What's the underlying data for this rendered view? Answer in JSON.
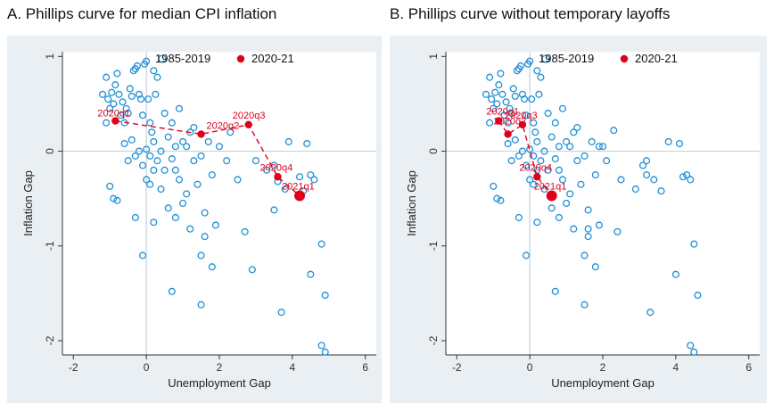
{
  "chart_data": [
    {
      "type": "scatter",
      "title": "A. Phillips curve for median CPI inflation",
      "xlabel": "Unemployment Gap",
      "ylabel": "Inflation Gap",
      "xlim": [
        -2.3,
        6.3
      ],
      "ylim": [
        -2.15,
        1.05
      ],
      "xticks": [
        -2,
        0,
        2,
        4,
        6
      ],
      "yticks": [
        1,
        0,
        -1,
        -2
      ],
      "reference_lines": {
        "x": 0,
        "y": 0
      },
      "legend": {
        "position": "top",
        "entries": [
          "1985-2019",
          "2020-21"
        ]
      },
      "series": [
        {
          "name": "1985-2019",
          "marker": "hollow-circle",
          "color": "#1f8fd6",
          "points": [
            [
              -1.2,
              0.6
            ],
            [
              -1.1,
              0.78
            ],
            [
              -1.05,
              0.55
            ],
            [
              -1.0,
              0.45
            ],
            [
              -0.95,
              0.62
            ],
            [
              -0.9,
              0.5
            ],
            [
              -0.85,
              0.7
            ],
            [
              -0.8,
              0.82
            ],
            [
              -0.75,
              0.6
            ],
            [
              -0.7,
              0.38
            ],
            [
              -0.65,
              0.52
            ],
            [
              -0.6,
              0.3
            ],
            [
              -0.55,
              0.45
            ],
            [
              -0.5,
              0.4
            ],
            [
              -0.45,
              0.66
            ],
            [
              -0.4,
              0.58
            ],
            [
              -0.35,
              0.85
            ],
            [
              -0.3,
              0.87
            ],
            [
              -0.25,
              0.9
            ],
            [
              -0.2,
              0.6
            ],
            [
              -0.15,
              0.55
            ],
            [
              -0.1,
              0.38
            ],
            [
              -0.05,
              0.92
            ],
            [
              0.0,
              0.95
            ],
            [
              0.05,
              0.55
            ],
            [
              0.1,
              0.3
            ],
            [
              0.15,
              0.2
            ],
            [
              0.2,
              0.85
            ],
            [
              0.25,
              0.6
            ],
            [
              0.3,
              0.78
            ],
            [
              -0.6,
              0.08
            ],
            [
              -0.5,
              -0.1
            ],
            [
              -0.4,
              0.12
            ],
            [
              -0.3,
              -0.05
            ],
            [
              -0.2,
              0.0
            ],
            [
              -0.1,
              -0.15
            ],
            [
              0.0,
              0.02
            ],
            [
              0.1,
              -0.05
            ],
            [
              0.2,
              0.1
            ],
            [
              0.3,
              -0.1
            ],
            [
              0.4,
              0.0
            ],
            [
              0.5,
              -0.2
            ],
            [
              0.6,
              0.15
            ],
            [
              0.7,
              -0.08
            ],
            [
              0.8,
              0.05
            ],
            [
              0.9,
              -0.3
            ],
            [
              1.0,
              0.1
            ],
            [
              1.1,
              -0.45
            ],
            [
              1.2,
              0.2
            ],
            [
              1.3,
              -0.1
            ],
            [
              0.0,
              -0.3
            ],
            [
              0.1,
              -0.35
            ],
            [
              0.2,
              -0.2
            ],
            [
              0.4,
              -0.4
            ],
            [
              0.6,
              -0.6
            ],
            [
              0.8,
              -0.7
            ],
            [
              1.0,
              -0.55
            ],
            [
              1.2,
              -0.82
            ],
            [
              1.4,
              -0.35
            ],
            [
              1.6,
              -0.9
            ],
            [
              1.8,
              -0.25
            ],
            [
              1.9,
              -0.78
            ],
            [
              0.5,
              0.4
            ],
            [
              0.7,
              0.3
            ],
            [
              0.9,
              0.45
            ],
            [
              1.1,
              0.05
            ],
            [
              1.3,
              0.25
            ],
            [
              1.5,
              -0.05
            ],
            [
              1.7,
              0.1
            ],
            [
              2.0,
              0.05
            ],
            [
              -1.1,
              0.3
            ],
            [
              -1.0,
              -0.37
            ],
            [
              -0.9,
              -0.5
            ],
            [
              -0.8,
              -0.52
            ],
            [
              -0.3,
              -0.7
            ],
            [
              0.2,
              -0.75
            ],
            [
              0.7,
              -1.48
            ],
            [
              1.5,
              -1.1
            ],
            [
              1.8,
              -1.22
            ],
            [
              1.5,
              -1.62
            ],
            [
              -0.1,
              -1.1
            ],
            [
              2.7,
              -0.85
            ],
            [
              2.9,
              -1.25
            ],
            [
              3.5,
              -0.15
            ],
            [
              3.6,
              -0.32
            ],
            [
              3.8,
              -0.4
            ],
            [
              3.9,
              0.1
            ],
            [
              4.2,
              -0.27
            ],
            [
              4.4,
              0.08
            ],
            [
              4.5,
              -0.25
            ],
            [
              4.6,
              -0.3
            ],
            [
              4.3,
              -0.42
            ],
            [
              3.3,
              -0.2
            ],
            [
              3.0,
              -0.1
            ],
            [
              4.5,
              -1.3
            ],
            [
              4.8,
              -0.98
            ],
            [
              4.9,
              -1.52
            ],
            [
              3.7,
              -1.7
            ],
            [
              4.8,
              -2.05
            ],
            [
              4.9,
              -2.12
            ],
            [
              2.5,
              -0.3
            ],
            [
              2.3,
              0.2
            ],
            [
              3.5,
              -0.62
            ],
            [
              0.8,
              -0.2
            ],
            [
              1.6,
              -0.65
            ],
            [
              2.2,
              -0.1
            ]
          ]
        },
        {
          "name": "2020-21",
          "marker": "filled-circle",
          "color": "#e0001b",
          "points": [
            {
              "label": "2020q1",
              "x": -0.85,
              "y": 0.32
            },
            {
              "label": "2020q2",
              "x": 1.5,
              "y": 0.18
            },
            {
              "label": "2020q3",
              "x": 2.8,
              "y": 0.28
            },
            {
              "label": "2020q4",
              "x": 3.6,
              "y": -0.27
            },
            {
              "label": "2021q1",
              "x": 4.2,
              "y": -0.47
            }
          ]
        }
      ]
    },
    {
      "type": "scatter",
      "title": "B. Phillips curve without temporary layoffs",
      "xlabel": "Unemployment Gap",
      "ylabel": "Inflation Gap",
      "xlim": [
        -2.3,
        6.3
      ],
      "ylim": [
        -2.15,
        1.05
      ],
      "xticks": [
        -2,
        0,
        2,
        4,
        6
      ],
      "yticks": [
        1,
        0,
        -1,
        -2
      ],
      "reference_lines": {
        "x": 0,
        "y": 0
      },
      "legend": {
        "position": "top",
        "entries": [
          "1985-2019",
          "2020-21"
        ]
      },
      "series": [
        {
          "name": "1985-2019",
          "marker": "hollow-circle",
          "color": "#1f8fd6",
          "points": [
            [
              -1.2,
              0.6
            ],
            [
              -1.1,
              0.78
            ],
            [
              -1.05,
              0.55
            ],
            [
              -1.0,
              0.45
            ],
            [
              -0.95,
              0.62
            ],
            [
              -0.9,
              0.5
            ],
            [
              -0.85,
              0.7
            ],
            [
              -0.8,
              0.82
            ],
            [
              -0.75,
              0.6
            ],
            [
              -0.7,
              0.38
            ],
            [
              -0.65,
              0.52
            ],
            [
              -0.6,
              0.3
            ],
            [
              -0.55,
              0.45
            ],
            [
              -0.5,
              0.4
            ],
            [
              -0.45,
              0.66
            ],
            [
              -0.4,
              0.58
            ],
            [
              -0.35,
              0.85
            ],
            [
              -0.3,
              0.87
            ],
            [
              -0.25,
              0.9
            ],
            [
              -0.2,
              0.6
            ],
            [
              -0.15,
              0.55
            ],
            [
              -0.1,
              0.38
            ],
            [
              -0.05,
              0.92
            ],
            [
              0.0,
              0.95
            ],
            [
              0.05,
              0.55
            ],
            [
              0.1,
              0.3
            ],
            [
              0.15,
              0.2
            ],
            [
              0.2,
              0.85
            ],
            [
              0.25,
              0.6
            ],
            [
              0.3,
              0.78
            ],
            [
              -0.6,
              0.08
            ],
            [
              -0.5,
              -0.1
            ],
            [
              -0.4,
              0.12
            ],
            [
              -0.3,
              -0.05
            ],
            [
              -0.2,
              0.0
            ],
            [
              -0.1,
              -0.15
            ],
            [
              0.0,
              0.02
            ],
            [
              0.1,
              -0.05
            ],
            [
              0.2,
              0.1
            ],
            [
              0.3,
              -0.1
            ],
            [
              0.4,
              0.0
            ],
            [
              0.5,
              -0.2
            ],
            [
              0.6,
              0.15
            ],
            [
              0.7,
              -0.08
            ],
            [
              0.8,
              0.05
            ],
            [
              0.9,
              -0.3
            ],
            [
              1.0,
              0.1
            ],
            [
              1.1,
              -0.45
            ],
            [
              1.2,
              0.2
            ],
            [
              1.3,
              -0.1
            ],
            [
              0.0,
              -0.3
            ],
            [
              0.1,
              -0.35
            ],
            [
              0.2,
              -0.2
            ],
            [
              0.4,
              -0.4
            ],
            [
              0.6,
              -0.6
            ],
            [
              0.8,
              -0.7
            ],
            [
              1.0,
              -0.55
            ],
            [
              1.2,
              -0.82
            ],
            [
              1.4,
              -0.35
            ],
            [
              1.6,
              -0.9
            ],
            [
              1.8,
              -0.25
            ],
            [
              1.9,
              -0.78
            ],
            [
              0.5,
              0.4
            ],
            [
              0.7,
              0.3
            ],
            [
              0.9,
              0.45
            ],
            [
              1.1,
              0.05
            ],
            [
              1.3,
              0.25
            ],
            [
              1.5,
              -0.05
            ],
            [
              1.7,
              0.1
            ],
            [
              2.0,
              0.05
            ],
            [
              -1.1,
              0.3
            ],
            [
              -1.0,
              -0.37
            ],
            [
              -0.9,
              -0.5
            ],
            [
              -0.8,
              -0.52
            ],
            [
              -0.3,
              -0.7
            ],
            [
              0.2,
              -0.75
            ],
            [
              0.7,
              -1.48
            ],
            [
              1.5,
              -1.1
            ],
            [
              1.8,
              -1.22
            ],
            [
              1.5,
              -1.62
            ],
            [
              -0.1,
              -1.1
            ],
            [
              2.4,
              -0.85
            ],
            [
              2.5,
              -0.3
            ],
            [
              3.2,
              -0.1
            ],
            [
              3.1,
              -0.15
            ],
            [
              3.4,
              -0.3
            ],
            [
              3.6,
              -0.42
            ],
            [
              3.8,
              0.1
            ],
            [
              4.2,
              -0.27
            ],
            [
              4.1,
              0.08
            ],
            [
              4.3,
              -0.25
            ],
            [
              4.4,
              -0.3
            ],
            [
              3.2,
              -0.25
            ],
            [
              2.9,
              -0.4
            ],
            [
              4.0,
              -1.3
            ],
            [
              4.5,
              -0.98
            ],
            [
              4.6,
              -1.52
            ],
            [
              3.3,
              -1.7
            ],
            [
              4.4,
              -2.05
            ],
            [
              4.5,
              -2.12
            ],
            [
              2.3,
              0.22
            ],
            [
              1.9,
              0.05
            ],
            [
              1.6,
              -0.62
            ],
            [
              0.8,
              -0.2
            ],
            [
              1.6,
              -0.82
            ],
            [
              2.1,
              -0.1
            ]
          ]
        },
        {
          "name": "2020-21",
          "marker": "filled-circle",
          "color": "#e0001b",
          "points": [
            {
              "label": "2020q1",
              "x": -0.85,
              "y": 0.32
            },
            {
              "label": "2020q2",
              "x": -0.6,
              "y": 0.18
            },
            {
              "label": "2020q3",
              "x": -0.2,
              "y": 0.28
            },
            {
              "label": "2020q4",
              "x": 0.2,
              "y": -0.27
            },
            {
              "label": "2021q1",
              "x": 0.6,
              "y": -0.47
            }
          ]
        }
      ]
    }
  ]
}
